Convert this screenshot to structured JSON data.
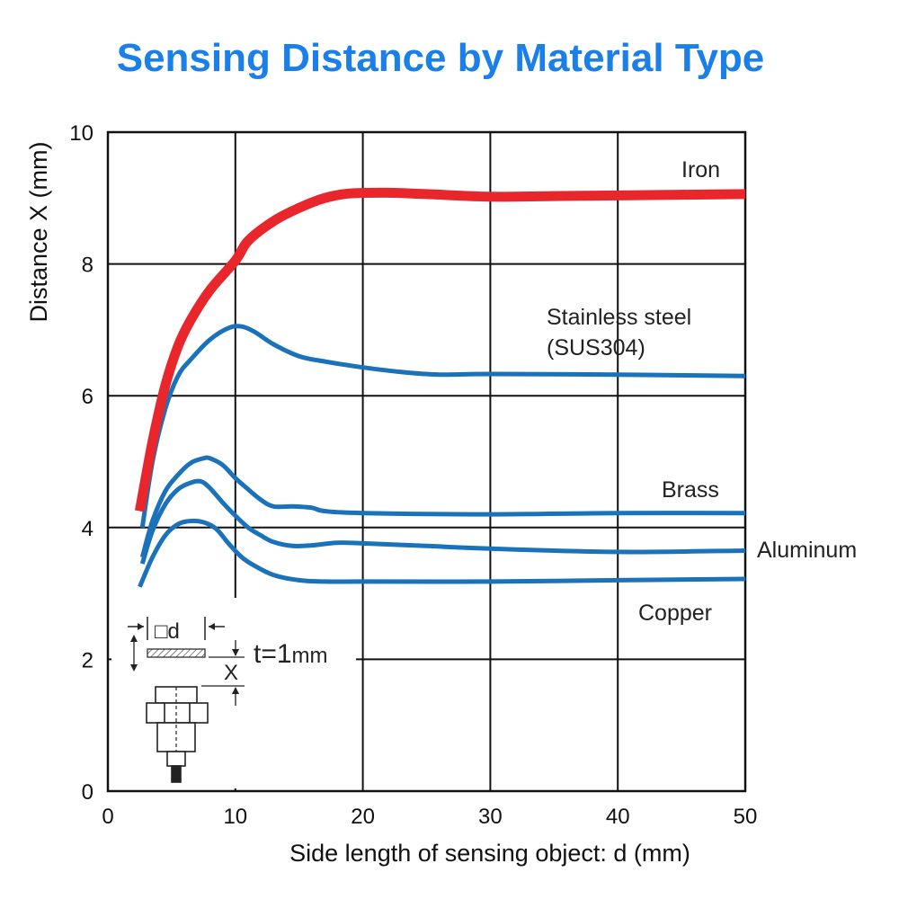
{
  "title": "Sensing Distance by Material Type",
  "chart_data": {
    "type": "line",
    "xlabel": "Side length of sensing object: d (mm)",
    "ylabel": "Distance X (mm)",
    "xlim": [
      0,
      50
    ],
    "ylim": [
      0,
      10
    ],
    "xticks": [
      "0",
      "10",
      "20",
      "30",
      "40",
      "50"
    ],
    "yticks": [
      "0",
      "2",
      "4",
      "6",
      "8",
      "10"
    ],
    "grid": true,
    "series": [
      {
        "name": "Iron",
        "color": "#e8262b",
        "x": [
          2.5,
          3.5,
          4.5,
          5.5,
          6.5,
          8,
          10,
          11,
          13,
          15,
          17,
          19,
          22,
          25,
          30,
          35,
          40,
          45,
          50
        ],
        "y": [
          4.25,
          5.3,
          6.15,
          6.75,
          7.15,
          7.6,
          8.05,
          8.35,
          8.65,
          8.85,
          9.0,
          9.07,
          9.08,
          9.06,
          9.02,
          9.03,
          9.04,
          9.05,
          9.06
        ]
      },
      {
        "name": "Stainless steel (SUS304)",
        "color": "#1a72bb",
        "x": [
          2.7,
          3.5,
          4.5,
          5.5,
          6.5,
          8,
          9.5,
          10.5,
          11.5,
          13,
          15,
          17,
          20,
          23,
          26,
          30,
          40,
          50
        ],
        "y": [
          4.0,
          5.0,
          5.8,
          6.3,
          6.55,
          6.85,
          7.03,
          7.05,
          6.97,
          6.78,
          6.6,
          6.52,
          6.43,
          6.36,
          6.32,
          6.33,
          6.32,
          6.3
        ]
      },
      {
        "name": "Brass",
        "color": "#1a72bb",
        "x": [
          2.7,
          3.5,
          4.5,
          5.5,
          6.5,
          7.5,
          8,
          9,
          10,
          11,
          12,
          13,
          14.5,
          16,
          17,
          20,
          30,
          40,
          50
        ],
        "y": [
          3.55,
          4.1,
          4.55,
          4.8,
          4.98,
          5.05,
          5.05,
          4.95,
          4.75,
          4.58,
          4.42,
          4.32,
          4.32,
          4.3,
          4.25,
          4.22,
          4.2,
          4.22,
          4.22
        ]
      },
      {
        "name": "Aluminum",
        "color": "#1a72bb",
        "x": [
          2.7,
          3.5,
          4.5,
          5.5,
          6.5,
          7.3,
          8,
          9,
          10,
          11,
          12,
          13,
          14.5,
          16,
          18,
          20,
          25,
          30,
          40,
          50
        ],
        "y": [
          3.45,
          3.95,
          4.35,
          4.58,
          4.68,
          4.7,
          4.6,
          4.38,
          4.18,
          4.0,
          3.88,
          3.78,
          3.72,
          3.73,
          3.77,
          3.76,
          3.72,
          3.68,
          3.63,
          3.65
        ]
      },
      {
        "name": "Copper",
        "color": "#1a72bb",
        "x": [
          2.5,
          3.5,
          4.5,
          5.5,
          6.5,
          7.5,
          8.5,
          9.5,
          10.5,
          11.5,
          13,
          15,
          17,
          20,
          30,
          40,
          50
        ],
        "y": [
          3.1,
          3.55,
          3.88,
          4.05,
          4.1,
          4.08,
          3.98,
          3.75,
          3.55,
          3.42,
          3.28,
          3.2,
          3.18,
          3.18,
          3.18,
          3.2,
          3.22
        ]
      }
    ],
    "labels": {
      "iron": "Iron",
      "stainless_1": "Stainless steel",
      "stainless_2": "(SUS304)",
      "brass": "Brass",
      "aluminum": "Aluminum",
      "copper": "Copper"
    },
    "inset": {
      "d_label": "□d",
      "x_label": "X",
      "thickness_main": "t=1",
      "thickness_unit": "mm"
    }
  }
}
